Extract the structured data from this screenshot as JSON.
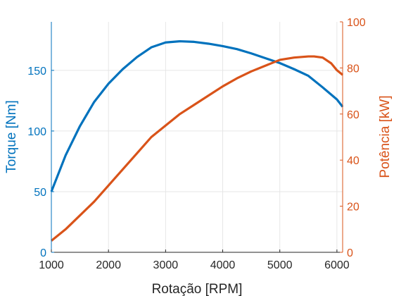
{
  "chart_data": {
    "type": "line",
    "title": "",
    "xlabel": "Rotação [RPM]",
    "ylabel_left": "Torque [Nm]",
    "ylabel_right": "Potência [kW]",
    "xlim": [
      1000,
      6100
    ],
    "ylim_left": [
      0,
      190
    ],
    "ylim_right": [
      0,
      100
    ],
    "xticks": [
      1000,
      2000,
      3000,
      4000,
      5000,
      6000
    ],
    "yticks_left": [
      0,
      50,
      100,
      150
    ],
    "yticks_right": [
      0,
      20,
      40,
      60,
      80,
      100
    ],
    "grid": true,
    "colors": {
      "left": "#0072BD",
      "right": "#D95319",
      "grid": "#e6e6e6",
      "axis": "#262626"
    },
    "series": [
      {
        "axis": "left",
        "x": [
          1000,
          1250,
          1500,
          1750,
          2000,
          2250,
          2500,
          2750,
          3000,
          3250,
          3500,
          3750,
          4000,
          4250,
          4500,
          4750,
          5000,
          5250,
          5500,
          5750,
          6000,
          6100
        ],
        "values": [
          50,
          80,
          104,
          124,
          139,
          151,
          161,
          169,
          173,
          174,
          173.5,
          172,
          170,
          167.5,
          164,
          160,
          156,
          151,
          145.5,
          136,
          126,
          120
        ]
      },
      {
        "axis": "right",
        "x": [
          1000,
          1250,
          1500,
          1750,
          2000,
          2250,
          2500,
          2750,
          3000,
          3250,
          3500,
          3750,
          4000,
          4250,
          4500,
          4750,
          5000,
          5250,
          5500,
          5600,
          5750,
          5900,
          6000,
          6100
        ],
        "values": [
          5,
          10,
          16,
          22,
          29,
          36,
          43,
          50,
          55,
          60,
          64,
          68,
          72,
          75.5,
          78.5,
          81,
          83.5,
          84.5,
          85,
          85,
          84.5,
          82,
          79,
          77
        ]
      }
    ]
  }
}
